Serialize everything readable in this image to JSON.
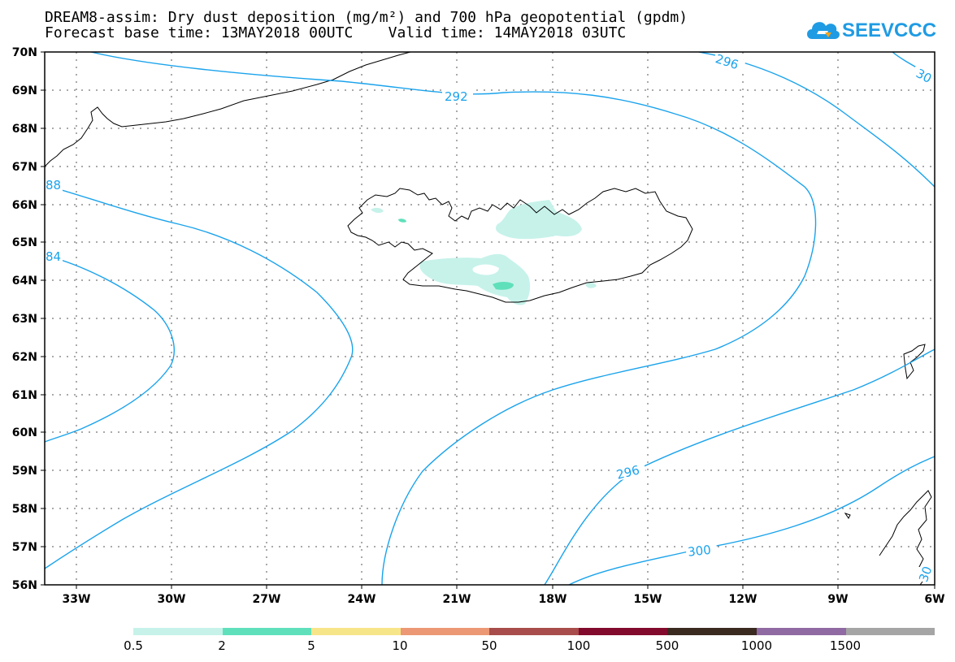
{
  "title": {
    "line1": "DREAM8-assim: Dry dust deposition (mg/m²) and 700 hPa geopotential (gpdm)",
    "line2": "Forecast base time: 13MAY2018 00UTC    Valid time: 14MAY2018 03UTC"
  },
  "logo": {
    "text": "SEEVCCC",
    "color": "#1f9be3"
  },
  "map": {
    "lat_labels": [
      "70N",
      "69N",
      "68N",
      "67N",
      "66N",
      "65N",
      "64N",
      "63N",
      "62N",
      "61N",
      "60N",
      "59N",
      "58N",
      "57N",
      "56N"
    ],
    "lon_labels": [
      "33W",
      "30W",
      "27W",
      "24W",
      "21W",
      "18W",
      "15W",
      "12W",
      "9W",
      "6W"
    ],
    "contour_color": "#1aa3ec",
    "contour_labels": [
      "292",
      "296",
      "30",
      "88",
      "84",
      "296",
      "300",
      "30"
    ]
  },
  "colorbar": {
    "colors": [
      "#c6f2ea",
      "#5fe0bb",
      "#f7e58a",
      "#ec9875",
      "#a84d4b",
      "#820a2d",
      "#3a2a20",
      "#906aa2",
      "#a5a5a5"
    ],
    "labels": [
      "0.5",
      "2",
      "5",
      "10",
      "50",
      "100",
      "500",
      "1000",
      "1500"
    ]
  }
}
